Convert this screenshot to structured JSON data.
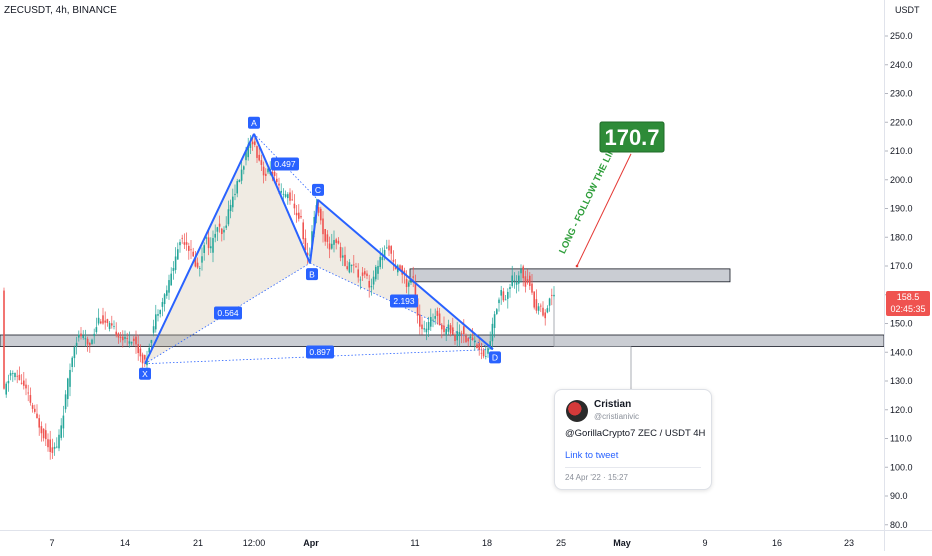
{
  "header": {
    "symbol_line": "ZECUSDT, 4h, BINANCE"
  },
  "price_axis": {
    "currency": "USDT",
    "ticks": [
      80,
      90,
      100,
      110,
      120,
      130,
      140,
      150,
      160,
      170,
      180,
      190,
      200,
      210,
      220,
      230,
      240,
      250
    ]
  },
  "current_price": {
    "value": "158.5",
    "countdown": "02:45:35"
  },
  "colors": {
    "up": "#26a69a",
    "down": "#ef5350",
    "pattern": "#2962ff",
    "target_bg": "#2e8b38",
    "zone": "#9aa0aa"
  },
  "chart_data": {
    "type": "candlestick",
    "title": "ZECUSDT, 4h, BINANCE",
    "ylim": [
      77,
      260
    ],
    "y_unit": "USDT",
    "time_ticks": [
      {
        "label": "7",
        "pos": 52
      },
      {
        "label": "14",
        "pos": 125
      },
      {
        "label": "21",
        "pos": 198
      },
      {
        "label": "12:00",
        "pos": 254
      },
      {
        "label": "Apr",
        "pos": 311
      },
      {
        "label": "11",
        "pos": 415
      },
      {
        "label": "18",
        "pos": 487
      },
      {
        "label": "25",
        "pos": 561
      },
      {
        "label": "May",
        "pos": 622
      },
      {
        "label": "9",
        "pos": 705
      },
      {
        "label": "16",
        "pos": 777
      },
      {
        "label": "23",
        "pos": 849
      }
    ],
    "price_anchors": [
      [
        4,
        125
      ],
      [
        12,
        133
      ],
      [
        20,
        131
      ],
      [
        28,
        126
      ],
      [
        36,
        118
      ],
      [
        44,
        112
      ],
      [
        52,
        106
      ],
      [
        58,
        107
      ],
      [
        64,
        118
      ],
      [
        70,
        132
      ],
      [
        76,
        144
      ],
      [
        82,
        146
      ],
      [
        90,
        142
      ],
      [
        100,
        152
      ],
      [
        110,
        149
      ],
      [
        118,
        147
      ],
      [
        126,
        144
      ],
      [
        134,
        145
      ],
      [
        140,
        140
      ],
      [
        146,
        136
      ],
      [
        152,
        145
      ],
      [
        158,
        154
      ],
      [
        164,
        158
      ],
      [
        170,
        164
      ],
      [
        176,
        172
      ],
      [
        182,
        180
      ],
      [
        188,
        178
      ],
      [
        194,
        173
      ],
      [
        200,
        168
      ],
      [
        206,
        180
      ],
      [
        212,
        176
      ],
      [
        218,
        184
      ],
      [
        224,
        180
      ],
      [
        230,
        190
      ],
      [
        236,
        196
      ],
      [
        242,
        202
      ],
      [
        248,
        210
      ],
      [
        254,
        214
      ],
      [
        258,
        209
      ],
      [
        262,
        206
      ],
      [
        266,
        201
      ],
      [
        272,
        204
      ],
      [
        278,
        198
      ],
      [
        284,
        194
      ],
      [
        290,
        195
      ],
      [
        296,
        189
      ],
      [
        302,
        186
      ],
      [
        306,
        176
      ],
      [
        310,
        171
      ],
      [
        314,
        186
      ],
      [
        318,
        192
      ],
      [
        324,
        182
      ],
      [
        330,
        176
      ],
      [
        336,
        180
      ],
      [
        342,
        174
      ],
      [
        348,
        169
      ],
      [
        354,
        172
      ],
      [
        360,
        166
      ],
      [
        366,
        168
      ],
      [
        372,
        162
      ],
      [
        378,
        170
      ],
      [
        384,
        174
      ],
      [
        390,
        177
      ],
      [
        396,
        168
      ],
      [
        402,
        170
      ],
      [
        408,
        163
      ],
      [
        414,
        166
      ],
      [
        420,
        150
      ],
      [
        426,
        147
      ],
      [
        432,
        151
      ],
      [
        438,
        154
      ],
      [
        444,
        147
      ],
      [
        450,
        149
      ],
      [
        456,
        145
      ],
      [
        462,
        148
      ],
      [
        468,
        144
      ],
      [
        474,
        145
      ],
      [
        480,
        141
      ],
      [
        486,
        138
      ],
      [
        490,
        142
      ],
      [
        494,
        150
      ],
      [
        498,
        156
      ],
      [
        502,
        162
      ],
      [
        506,
        158
      ],
      [
        510,
        162
      ],
      [
        514,
        166
      ],
      [
        518,
        163
      ],
      [
        522,
        170
      ],
      [
        526,
        164
      ],
      [
        530,
        166
      ],
      [
        534,
        158
      ],
      [
        538,
        155
      ],
      [
        542,
        156
      ],
      [
        546,
        152
      ],
      [
        550,
        158
      ],
      [
        554,
        161
      ]
    ],
    "harmonic_pattern": {
      "points": [
        {
          "label": "X",
          "price": 136
        },
        {
          "label": "A",
          "price": 216
        },
        {
          "label": "B",
          "price": 171
        },
        {
          "label": "C",
          "price": 193
        },
        {
          "label": "D",
          "price": 141
        }
      ],
      "ratios": [
        "0.497",
        "0.564",
        "2.193",
        "0.897"
      ]
    },
    "zones": [
      {
        "low": 164.5,
        "high": 169
      },
      {
        "low": 142,
        "high": 146
      }
    ],
    "projection": {
      "text": "LONG - FOLLOW THE LINE",
      "target_label": "170.7",
      "from_price": 170,
      "to_price": 209
    }
  },
  "tweet": {
    "name": "Cristian",
    "handle": "@cristianivic",
    "text": "@GorillaCrypto7 ZEC / USDT 4H",
    "link": "Link to tweet",
    "date": "24 Apr '22 · 15:27"
  }
}
